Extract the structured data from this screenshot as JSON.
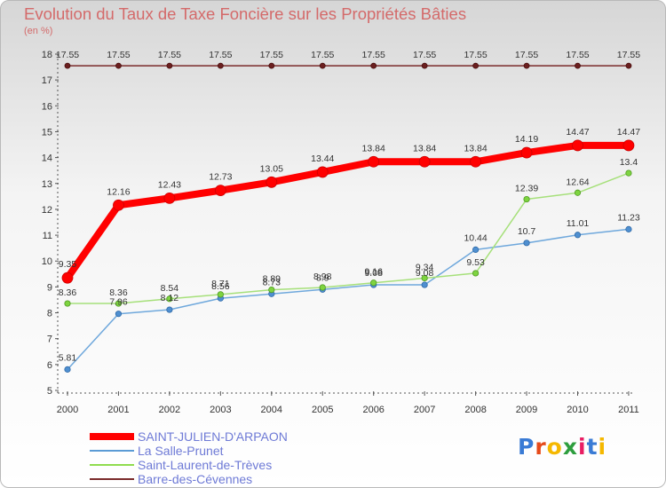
{
  "header": {
    "title": "Evolution du Taux de Taxe Foncière sur les Propriétés Bâties",
    "unit": "(en %)"
  },
  "chart_data": {
    "type": "line",
    "title": "Evolution du Taux de Taxe Foncière sur les Propriétés Bâties",
    "ylabel": "(en %)",
    "xlabel": "",
    "categories": [
      "2000",
      "2001",
      "2002",
      "2003",
      "2004",
      "2005",
      "2006",
      "2007",
      "2008",
      "2009",
      "2010",
      "2011"
    ],
    "yticks": [
      "5",
      "6",
      "7",
      "8",
      "9",
      "10",
      "11",
      "12",
      "13",
      "14",
      "15",
      "16",
      "17",
      "18"
    ],
    "ylim": [
      5,
      18
    ],
    "grid": false,
    "series": [
      {
        "name": "SAINT-JULIEN-D'ARPAON",
        "color": "#ff0000",
        "values": [
          9.35,
          12.16,
          12.43,
          12.73,
          13.05,
          13.44,
          13.84,
          13.84,
          13.84,
          14.19,
          14.47,
          14.47
        ],
        "labels": [
          "9.35",
          "12.16",
          "12.43",
          "12.73",
          "13.05",
          "13.44",
          "13.84",
          "13.84",
          "13.84",
          "14.19",
          "14.47",
          "14.47"
        ]
      },
      {
        "name": "La Salle-Prunet",
        "color": "#5b9bd5",
        "values": [
          5.81,
          7.96,
          8.12,
          8.56,
          8.73,
          8.9,
          9.08,
          9.08,
          10.44,
          10.7,
          11.01,
          11.23
        ],
        "labels": [
          "5.81",
          "7.96",
          "8.12",
          "8.56",
          "8.73",
          "8.9",
          "9.08",
          "9.08",
          "10.44",
          "10.7",
          "11.01",
          "11.23"
        ]
      },
      {
        "name": "Saint-Laurent-de-Trèves",
        "color": "#8fdc4f",
        "values": [
          8.36,
          8.36,
          8.54,
          8.71,
          8.89,
          8.98,
          9.16,
          9.34,
          9.53,
          12.39,
          12.64,
          13.4
        ],
        "labels": [
          "8.36",
          "8.36",
          "8.54",
          "8.71",
          "8.89",
          "8.98",
          "9.16",
          "9.34",
          "9.53",
          "12.39",
          "12.64",
          "13.4"
        ]
      },
      {
        "name": "Barre-des-Cévennes",
        "color": "#7a2a2a",
        "values": [
          17.55,
          17.55,
          17.55,
          17.55,
          17.55,
          17.55,
          17.55,
          17.55,
          17.55,
          17.55,
          17.55,
          17.55
        ],
        "labels": [
          "17.55",
          "17.55",
          "17.55",
          "17.55",
          "17.55",
          "17.55",
          "17.55",
          "17.55",
          "17.55",
          "17.55",
          "17.55",
          "17.55"
        ]
      }
    ]
  },
  "legend": {
    "position": "bottom-left",
    "items": [
      {
        "label": "SAINT-JULIEN-D'ARPAON",
        "color": "#ff0000"
      },
      {
        "label": "La Salle-Prunet",
        "color": "#5b9bd5"
      },
      {
        "label": "Saint-Laurent-de-Trèves",
        "color": "#8fdc4f"
      },
      {
        "label": "Barre-des-Cévennes",
        "color": "#7a2a2a"
      }
    ]
  },
  "logo": {
    "text": "Proxiti",
    "letter_colors": [
      "#3a7bd5",
      "#e64a19",
      "#f5b800",
      "#2e9e3e",
      "#e91e63",
      "#3a7bd5",
      "#f5b800"
    ]
  }
}
